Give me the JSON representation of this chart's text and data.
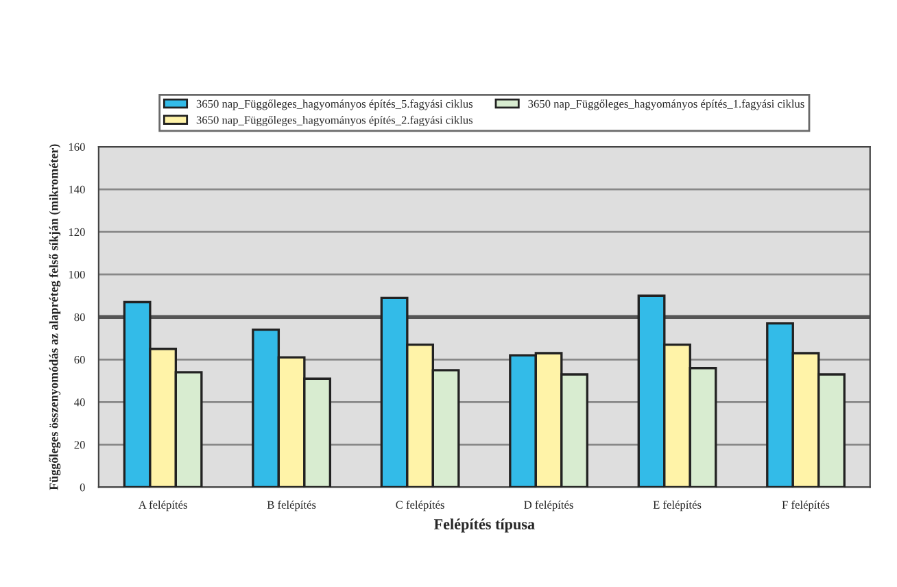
{
  "chart_data": {
    "type": "bar",
    "categories": [
      "A felépítés",
      "B felépítés",
      "C felépítés",
      "D felépítés",
      "E felépítés",
      "F felépítés"
    ],
    "series": [
      {
        "name": "3650 nap_Függőleges_hagyományos építés_5.fagyási ciklus",
        "color": "#33bbe8",
        "values": [
          87,
          74,
          89,
          62,
          90,
          77
        ]
      },
      {
        "name": "3650 nap_Függőleges_hagyományos építés_2.fagyási ciklus",
        "color": "#fff3a8",
        "values": [
          65,
          61,
          67,
          63,
          67,
          63
        ]
      },
      {
        "name": "3650 nap_Függőleges_hagyományos építés_1.fagyási ciklus",
        "color": "#d8ecd0",
        "values": [
          54,
          51,
          55,
          53,
          56,
          53
        ]
      }
    ],
    "xlabel": "Felépítés típusa",
    "ylabel": "Függőleges összenyomódás az alapréteg felső síkján (mikrométer)",
    "ylim": [
      0,
      160
    ],
    "yticks": [
      0,
      20,
      40,
      60,
      80,
      100,
      120,
      140,
      160
    ],
    "ref_lines": [
      {
        "axis": "y",
        "value": 80,
        "color": "#555555"
      }
    ],
    "grid": "y",
    "legend": "top"
  }
}
